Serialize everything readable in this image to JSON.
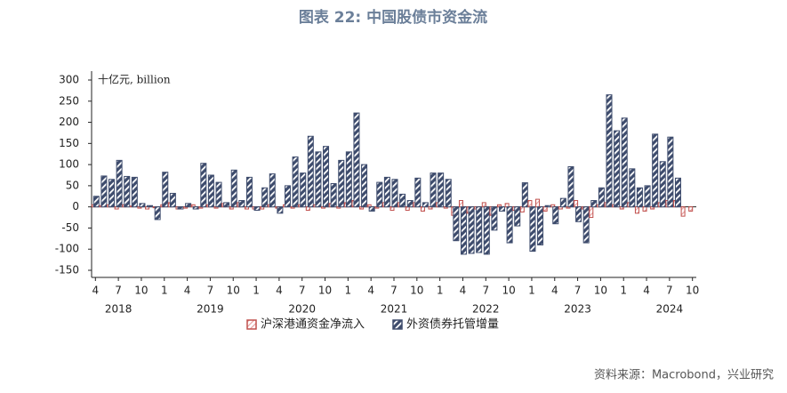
{
  "chart_data": {
    "type": "bar",
    "title": "图表 22: 中国股债市资金流",
    "unit_label": "十亿元, billion",
    "source": "资料来源：Macrobond，兴业研究",
    "categories": [
      "4",
      null,
      null,
      "7",
      null,
      null,
      "10",
      null,
      null,
      "1",
      null,
      null,
      "4",
      null,
      null,
      "7",
      null,
      null,
      "10",
      null,
      null,
      "1",
      null,
      null,
      "4",
      null,
      null,
      "7",
      null,
      null,
      "10",
      null,
      null,
      "1",
      null,
      null,
      "4",
      null,
      null,
      "7",
      null,
      null,
      "10",
      null,
      null,
      "1",
      null,
      null,
      "4",
      null,
      null,
      "7",
      null,
      null,
      "10",
      null,
      null,
      "1",
      null,
      null,
      "4",
      null,
      null,
      "7",
      null,
      null,
      "10",
      null,
      null,
      "1",
      null,
      null,
      "4",
      null,
      null,
      "7",
      null,
      null,
      "10"
    ],
    "years": [
      "2018",
      "2019",
      "2020",
      "2021",
      "2022",
      "2023",
      "2024"
    ],
    "series": [
      {
        "name": "沪深港通资金净流入",
        "color": "#c0504d",
        "values": [
          5,
          3,
          5,
          -5,
          5,
          2,
          -3,
          -5,
          -2,
          5,
          10,
          -5,
          -3,
          5,
          -3,
          5,
          -3,
          8,
          -5,
          10,
          -5,
          -5,
          -5,
          5,
          -3,
          5,
          -3,
          5,
          -8,
          5,
          -3,
          8,
          -3,
          10,
          15,
          -5,
          5,
          -3,
          10,
          -8,
          10,
          -8,
          10,
          -10,
          -5,
          10,
          -3,
          -20,
          15,
          -15,
          -5,
          10,
          -20,
          5,
          8,
          -8,
          -12,
          15,
          18,
          -10,
          5,
          -5,
          -3,
          15,
          -5,
          -25,
          5,
          10,
          5,
          -5,
          10,
          -15,
          -10,
          -5,
          10,
          15,
          15,
          -22,
          -10
        ]
      },
      {
        "name": "外资债券托管增量",
        "color": "#3e4c6d",
        "values": [
          25,
          73,
          65,
          110,
          72,
          70,
          8,
          3,
          -30,
          82,
          32,
          -5,
          8,
          -5,
          103,
          75,
          58,
          10,
          87,
          15,
          70,
          -8,
          45,
          78,
          -15,
          50,
          118,
          80,
          167,
          130,
          143,
          55,
          110,
          130,
          222,
          100,
          -10,
          58,
          70,
          65,
          30,
          15,
          68,
          10,
          80,
          80,
          65,
          -80,
          -112,
          -110,
          -108,
          -112,
          -55,
          -10,
          -85,
          -45,
          57,
          -105,
          -90,
          3,
          -40,
          20,
          95,
          -35,
          -85,
          15,
          45,
          265,
          180,
          210,
          90,
          45,
          50,
          172,
          107,
          165,
          68,
          0,
          0
        ]
      }
    ],
    "ylim": [
      -150,
      300
    ],
    "yticks": [
      -150,
      -100,
      -50,
      0,
      50,
      100,
      150,
      200,
      250,
      300
    ],
    "grid": false,
    "legend": "bottom"
  }
}
